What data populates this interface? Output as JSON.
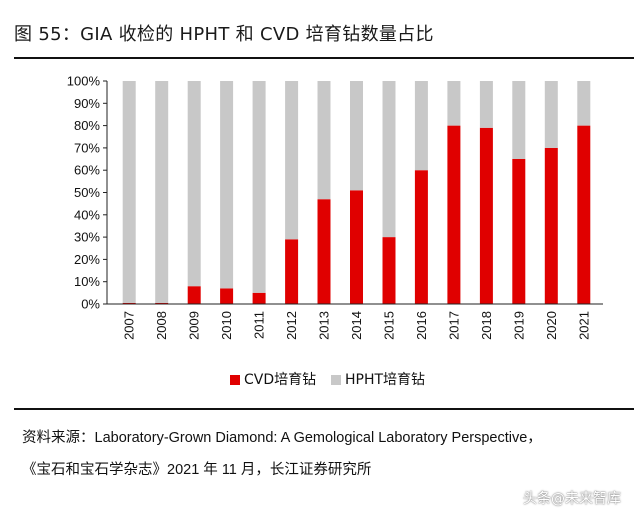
{
  "title": "图 55：GIA 收检的 HPHT 和 CVD 培育钻数量占比",
  "chart_data": {
    "type": "bar",
    "stacked": true,
    "categories": [
      "2007",
      "2008",
      "2009",
      "2010",
      "2011",
      "2012",
      "2013",
      "2014",
      "2015",
      "2016",
      "2017",
      "2018",
      "2019",
      "2020",
      "2021"
    ],
    "series": [
      {
        "name": "CVD培育钻",
        "color": "#e00000",
        "values": [
          0.5,
          0.5,
          8,
          7,
          5,
          29,
          47,
          51,
          30,
          60,
          80,
          79,
          65,
          70,
          80
        ]
      },
      {
        "name": "HPHT培育钻",
        "color": "#c8c8c8",
        "values": [
          99.5,
          99.5,
          92,
          93,
          95,
          71,
          53,
          49,
          70,
          40,
          20,
          21,
          35,
          30,
          20
        ]
      }
    ],
    "ylim": [
      0,
      100
    ],
    "yticks": [
      "0%",
      "10%",
      "20%",
      "30%",
      "40%",
      "50%",
      "60%",
      "70%",
      "80%",
      "90%",
      "100%"
    ],
    "legend_position": "bottom",
    "grid": false
  },
  "source": {
    "line1": "资料来源：Laboratory-Grown Diamond: A Gemological Laboratory Perspective，",
    "line2": "《宝石和宝石学杂志》2021 年 11 月，长江证券研究所"
  },
  "watermark": "头条@未来智库"
}
